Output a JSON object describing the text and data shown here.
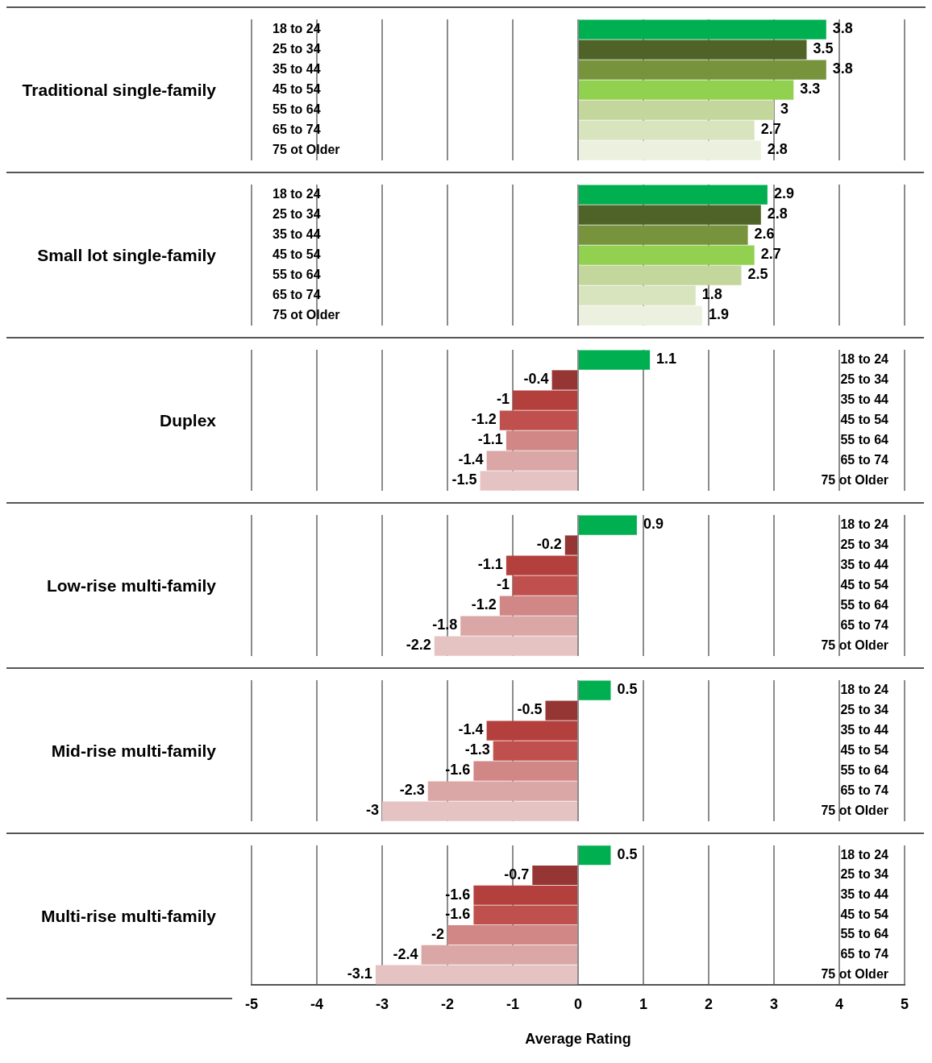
{
  "chart_data": [
    {
      "type": "bar",
      "orientation": "horizontal",
      "ylabel": "Traditional single-family",
      "categories": [
        "18 to 24",
        "25 to 34",
        "35 to 44",
        "45 to 54",
        "55 to 64",
        "65 to 74",
        "75 ot Older"
      ],
      "values": [
        3.8,
        3.5,
        3.8,
        3.3,
        3,
        2.7,
        2.8
      ],
      "colors": [
        "#00b050",
        "#4f6228",
        "#77933c",
        "#92d050",
        "#c3d69b",
        "#d7e4bd",
        "#ebf1de"
      ],
      "xlim": [
        -5,
        5
      ],
      "xticks": [
        -5,
        -4,
        -3,
        -2,
        -1,
        0,
        1,
        2,
        3,
        4,
        5
      ],
      "grid": "x",
      "data_labels": true,
      "tick_labels": "y"
    },
    {
      "type": "bar",
      "orientation": "horizontal",
      "ylabel": "Small lot single-family",
      "categories": [
        "18 to 24",
        "25 to 34",
        "35 to 44",
        "45 to 54",
        "55 to 64",
        "65 to 74",
        "75 ot Older"
      ],
      "values": [
        2.9,
        2.8,
        2.6,
        2.7,
        2.5,
        1.8,
        1.9
      ],
      "colors": [
        "#00b050",
        "#4f6228",
        "#77933c",
        "#92d050",
        "#c3d69b",
        "#d7e4bd",
        "#ebf1de"
      ],
      "xlim": [
        -5,
        5
      ],
      "xticks": [
        -5,
        -4,
        -3,
        -2,
        -1,
        0,
        1,
        2,
        3,
        4,
        5
      ],
      "grid": "x",
      "data_labels": true,
      "tick_labels": "y"
    },
    {
      "type": "bar",
      "orientation": "horizontal",
      "ylabel": "Duplex",
      "categories": [
        "18 to 24",
        "25 to 34",
        "35 to 44",
        "45 to 54",
        "55 to 64",
        "65 to 74",
        "75 ot Older"
      ],
      "values": [
        1.1,
        -0.4,
        -1,
        -1.2,
        -1.1,
        -1.4,
        -1.5
      ],
      "colors": [
        "#00b050",
        "#963634",
        "#b3403d",
        "#c0504d",
        "#d08785",
        "#dba7a6",
        "#e6c3c3"
      ],
      "xlim": [
        -5,
        5
      ],
      "xticks": [
        -5,
        -4,
        -3,
        -2,
        -1,
        0,
        1,
        2,
        3,
        4,
        5
      ],
      "grid": "x",
      "data_labels": true,
      "tick_labels": "y"
    },
    {
      "type": "bar",
      "orientation": "horizontal",
      "ylabel": "Low-rise multi-family",
      "categories": [
        "18 to 24",
        "25 to 34",
        "35 to 44",
        "45 to 54",
        "55 to 64",
        "65 to 74",
        "75 ot Older"
      ],
      "values": [
        0.9,
        -0.2,
        -1.1,
        -1,
        -1.2,
        -1.8,
        -2.2
      ],
      "colors": [
        "#00b050",
        "#963634",
        "#b3403d",
        "#c0504d",
        "#d08785",
        "#dba7a6",
        "#e6c3c3"
      ],
      "xlim": [
        -5,
        5
      ],
      "xticks": [
        -5,
        -4,
        -3,
        -2,
        -1,
        0,
        1,
        2,
        3,
        4,
        5
      ],
      "grid": "x",
      "data_labels": true,
      "tick_labels": "y"
    },
    {
      "type": "bar",
      "orientation": "horizontal",
      "ylabel": "Mid-rise multi-family",
      "categories": [
        "18 to 24",
        "25 to 34",
        "35 to 44",
        "45 to 54",
        "55 to 64",
        "65 to 74",
        "75 ot Older"
      ],
      "values": [
        0.5,
        -0.5,
        -1.4,
        -1.3,
        -1.6,
        -2.3,
        -3
      ],
      "colors": [
        "#00b050",
        "#963634",
        "#b3403d",
        "#c0504d",
        "#d08785",
        "#dba7a6",
        "#e6c3c3"
      ],
      "xlim": [
        -5,
        5
      ],
      "xticks": [
        -5,
        -4,
        -3,
        -2,
        -1,
        0,
        1,
        2,
        3,
        4,
        5
      ],
      "grid": "x",
      "data_labels": true,
      "tick_labels": "y"
    },
    {
      "type": "bar",
      "orientation": "horizontal",
      "ylabel": "Multi-rise multi-family",
      "xlabel": "Average Rating",
      "categories": [
        "18 to 24",
        "25 to 34",
        "35 to 44",
        "45 to 54",
        "55 to 64",
        "65 to 74",
        "75 ot Older"
      ],
      "values": [
        0.5,
        -0.7,
        -1.6,
        -1.6,
        -2,
        -2.4,
        -3.1
      ],
      "colors": [
        "#00b050",
        "#963634",
        "#b3403d",
        "#c0504d",
        "#d08785",
        "#dba7a6",
        "#e6c3c3"
      ],
      "xlim": [
        -5,
        5
      ],
      "xticks": [
        -5,
        -4,
        -3,
        -2,
        -1,
        0,
        1,
        2,
        3,
        4,
        5
      ],
      "grid": "x",
      "data_labels": true
    }
  ]
}
